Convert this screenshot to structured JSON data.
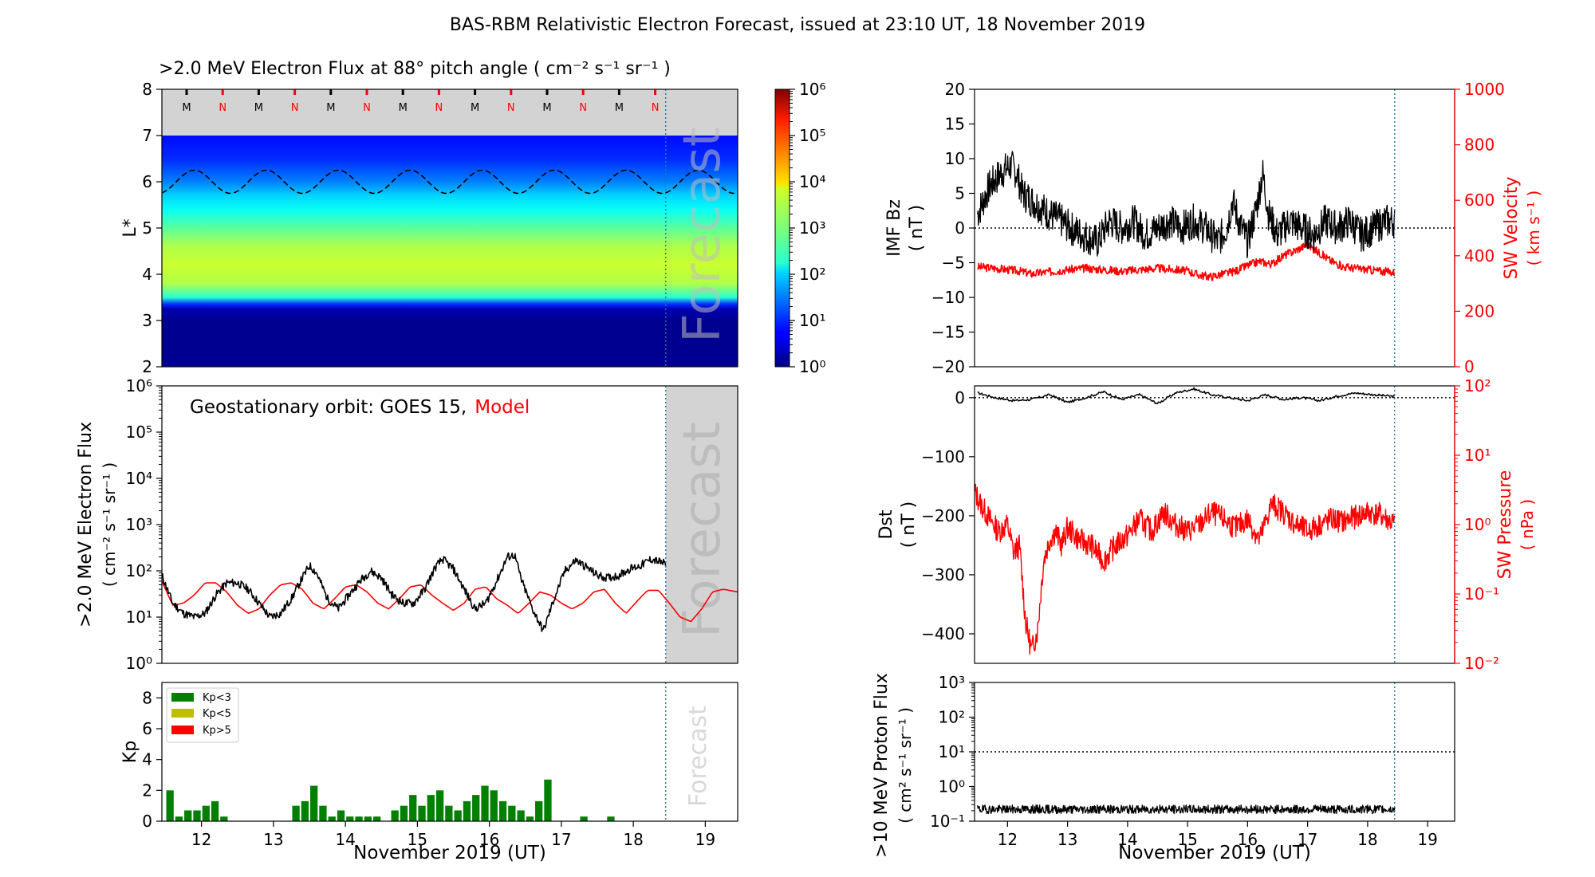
{
  "suptitle": "BAS-RBM Relativistic Electron Forecast, issued at 23:10 UT, 18 November 2019",
  "forecast_text": "Forecast",
  "colors": {
    "obs": "#000000",
    "model": "#ff0000",
    "red_axis": "#ff0000",
    "forecast_bg": "#d3d3d3",
    "kp_low": "#008000",
    "kp_mid": "#bfbf00",
    "kp_high": "#ff0000",
    "vline": "#1f77b4"
  },
  "chart_data": [
    {
      "id": "lstar_flux",
      "type": "heatmap",
      "title": ">2.0 MeV Electron Flux at 88° pitch angle ( cm⁻² s⁻¹ sr⁻¹ )",
      "ylabel": "L*",
      "xlim": [
        11.45,
        19.45
      ],
      "ylim": [
        2,
        8
      ],
      "yticks": [
        "2",
        "3",
        "4",
        "5",
        "6",
        "7",
        "8"
      ],
      "colorbar": {
        "scale": "log",
        "range": [
          1,
          1000000
        ],
        "ticks": [
          "10⁰",
          "10¹",
          "10²",
          "10³",
          "10⁴",
          "10⁵",
          "10⁶"
        ]
      },
      "profile_log10_by_L": [
        [
          2.0,
          0.1
        ],
        [
          3.0,
          0.1
        ],
        [
          3.25,
          0.3
        ],
        [
          3.35,
          1.0
        ],
        [
          3.5,
          2.5
        ],
        [
          3.8,
          3.3
        ],
        [
          4.2,
          3.45
        ],
        [
          4.6,
          3.3
        ],
        [
          5.0,
          2.8
        ],
        [
          5.4,
          2.3
        ],
        [
          5.7,
          2.0
        ],
        [
          6.0,
          1.5
        ],
        [
          6.5,
          1.0
        ],
        [
          7.0,
          0.8
        ]
      ],
      "grey_above_L": 7.0,
      "markers": [
        "M",
        "N",
        "M",
        "N",
        "M",
        "N",
        "M",
        "N",
        "M",
        "N",
        "M",
        "N",
        "M",
        "N"
      ],
      "last_closed_drift_shell": {
        "mean": 6.0,
        "amplitude": 0.25,
        "period_days": 1.0
      },
      "forecast_start": 18.45
    },
    {
      "id": "geo_flux",
      "type": "line",
      "annotation": "Geostationary orbit:   GOES 15,",
      "annotation_model": "Model",
      "ylabel": ">2.0 MeV Electron Flux",
      "ylabel2": "( cm⁻² s⁻¹ sr⁻¹ )",
      "yscale": "log",
      "xlim": [
        11.45,
        19.45
      ],
      "ylim": [
        1,
        1000000
      ],
      "yticks": [
        "10⁰",
        "10¹",
        "10²",
        "10³",
        "10⁴",
        "10⁵",
        "10⁶"
      ],
      "series": [
        {
          "name": "GOES 15",
          "x": [
            11.45,
            11.6,
            11.75,
            11.9,
            12.05,
            12.2,
            12.35,
            12.5,
            12.65,
            12.8,
            12.95,
            13.1,
            13.25,
            13.4,
            13.5,
            13.6,
            13.75,
            13.9,
            14.05,
            14.2,
            14.35,
            14.5,
            14.65,
            14.8,
            14.95,
            15.1,
            15.25,
            15.35,
            15.5,
            15.65,
            15.8,
            15.95,
            16.1,
            16.25,
            16.35,
            16.45,
            16.6,
            16.75,
            16.9,
            17.05,
            17.2,
            17.35,
            17.5,
            17.65,
            17.8,
            17.95,
            18.1,
            18.25,
            18.45
          ],
          "y": [
            80,
            20,
            12,
            10,
            12,
            30,
            55,
            55,
            40,
            20,
            10,
            12,
            25,
            70,
            130,
            90,
            25,
            15,
            30,
            60,
            100,
            70,
            30,
            20,
            20,
            40,
            120,
            180,
            110,
            40,
            15,
            20,
            60,
            200,
            220,
            60,
            15,
            5,
            25,
            100,
            170,
            120,
            80,
            70,
            80,
            110,
            130,
            180,
            140
          ]
        },
        {
          "name": "Model",
          "x": [
            11.45,
            11.6,
            11.75,
            11.9,
            12.05,
            12.2,
            12.35,
            12.5,
            12.65,
            12.8,
            12.95,
            13.1,
            13.25,
            13.4,
            13.55,
            13.7,
            13.85,
            14.0,
            14.15,
            14.3,
            14.45,
            14.6,
            14.75,
            14.9,
            15.05,
            15.2,
            15.35,
            15.5,
            15.65,
            15.8,
            15.95,
            16.1,
            16.25,
            16.4,
            16.55,
            16.7,
            16.85,
            17.0,
            17.15,
            17.3,
            17.45,
            17.6,
            17.75,
            17.9,
            18.05,
            18.2,
            18.35,
            18.5,
            18.65,
            18.8,
            18.95,
            19.1,
            19.25,
            19.45
          ],
          "y": [
            60,
            18,
            20,
            30,
            55,
            55,
            35,
            18,
            12,
            15,
            30,
            50,
            55,
            40,
            20,
            15,
            25,
            45,
            50,
            35,
            20,
            15,
            25,
            45,
            50,
            30,
            20,
            14,
            20,
            40,
            45,
            25,
            18,
            12,
            20,
            35,
            30,
            20,
            15,
            20,
            35,
            40,
            20,
            12,
            22,
            38,
            38,
            20,
            10,
            8,
            15,
            35,
            40,
            35
          ]
        }
      ],
      "forecast_start": 18.45
    },
    {
      "id": "kp",
      "type": "bar",
      "ylabel": "Kp",
      "xlim": [
        11.45,
        19.45
      ],
      "ylim": [
        0,
        9
      ],
      "yticks": [
        "0",
        "2",
        "4",
        "6",
        "8"
      ],
      "legend": [
        "Kp<3",
        "Kp<5",
        "Kp>5"
      ],
      "bin_days": 0.125,
      "bar_starts": [
        11.5,
        11.625,
        11.75,
        11.875,
        12.0,
        12.125,
        12.25,
        12.375,
        12.5,
        12.625,
        12.75,
        12.875,
        13.0,
        13.125,
        13.25,
        13.375,
        13.5,
        13.625,
        13.75,
        13.875,
        14.0,
        14.125,
        14.25,
        14.375,
        14.5,
        14.625,
        14.75,
        14.875,
        15.0,
        15.125,
        15.25,
        15.375,
        15.5,
        15.625,
        15.75,
        15.875,
        16.0,
        16.125,
        16.25,
        16.375,
        16.5,
        16.625,
        16.75,
        16.875,
        17.0,
        17.125,
        17.25,
        17.375,
        17.5,
        17.625,
        17.75,
        17.875,
        18.0,
        18.125,
        18.25,
        18.375
      ],
      "values": [
        2.0,
        0.3,
        0.7,
        0.7,
        1.0,
        1.3,
        0.3,
        0,
        0,
        0,
        0,
        0,
        0,
        0,
        1.0,
        1.3,
        2.3,
        1.0,
        0.3,
        0.7,
        0.3,
        0.3,
        0.3,
        0.3,
        0,
        0.7,
        1.0,
        1.7,
        1.0,
        1.7,
        2.0,
        1.0,
        0.7,
        1.3,
        1.7,
        2.3,
        2.0,
        1.3,
        1.0,
        0.7,
        0.3,
        1.3,
        2.7,
        0,
        0,
        0,
        0.3,
        0,
        0,
        0.3,
        0,
        0,
        0,
        0,
        0,
        0
      ],
      "forecast_start": 18.45
    },
    {
      "id": "imf",
      "type": "line",
      "ylabel": "IMF Bz",
      "ylabel2": "( nT )",
      "xlim": [
        11.45,
        19.45
      ],
      "ylim": [
        -20,
        20
      ],
      "yticks": [
        "−20",
        "−15",
        "−10",
        "−5",
        "0",
        "5",
        "10",
        "15",
        "20"
      ],
      "ylabel_right": "SW Velocity",
      "ylabel_right2": "( km s⁻¹ )",
      "ylim_right": [
        0,
        1000
      ],
      "yticks_right": [
        "0",
        "200",
        "400",
        "600",
        "800",
        "1000"
      ],
      "series": [
        {
          "name": "IMF Bz",
          "x": [
            11.5,
            11.7,
            11.9,
            12.05,
            12.15,
            12.25,
            12.4,
            12.55,
            12.7,
            12.9,
            13.05,
            13.25,
            13.5,
            13.7,
            13.9,
            14.1,
            14.3,
            14.5,
            14.7,
            14.9,
            15.1,
            15.3,
            15.5,
            15.65,
            15.75,
            15.85,
            16.0,
            16.15,
            16.25,
            16.35,
            16.5,
            16.7,
            16.9,
            17.1,
            17.3,
            17.5,
            17.7,
            17.9,
            18.1,
            18.3,
            18.45
          ],
          "y": [
            2,
            6,
            8,
            9,
            8,
            5,
            4,
            3,
            2,
            1,
            0,
            -1,
            -2,
            1,
            0,
            1,
            -1,
            0,
            1,
            0,
            1,
            0,
            -2,
            0,
            4,
            1,
            -2,
            3,
            8,
            2,
            -1,
            1,
            0,
            -1,
            1,
            0,
            1,
            -1,
            0,
            1,
            1
          ]
        },
        {
          "name": "SW Velocity",
          "x": [
            11.5,
            11.8,
            12.0,
            12.2,
            12.4,
            12.6,
            12.8,
            13.0,
            13.3,
            13.6,
            13.9,
            14.2,
            14.5,
            14.8,
            15.0,
            15.2,
            15.4,
            15.6,
            15.8,
            16.0,
            16.2,
            16.4,
            16.6,
            16.8,
            17.0,
            17.2,
            17.4,
            17.6,
            17.8,
            18.0,
            18.2,
            18.45
          ],
          "y": [
            360,
            355,
            350,
            345,
            335,
            340,
            345,
            350,
            355,
            350,
            345,
            350,
            355,
            350,
            345,
            330,
            325,
            335,
            345,
            365,
            380,
            370,
            400,
            420,
            440,
            410,
            380,
            360,
            355,
            350,
            345,
            340
          ]
        }
      ],
      "forecast_start": 18.45
    },
    {
      "id": "dst",
      "type": "line",
      "ylabel": "Dst",
      "ylabel2": "( nT )",
      "xlim": [
        11.45,
        19.45
      ],
      "ylim": [
        -450,
        20
      ],
      "yticks": [
        "−400",
        "−300",
        "−200",
        "−100",
        "0"
      ],
      "ylabel_right": "SW Pressure",
      "ylabel_right2": "( nPa )",
      "yscale_right": "log",
      "ylim_right": [
        0.01,
        100
      ],
      "yticks_right": [
        "10⁻²",
        "10⁻¹",
        "10⁰",
        "10¹",
        "10²"
      ],
      "series": [
        {
          "name": "Dst",
          "x": [
            11.5,
            11.8,
            12.1,
            12.4,
            12.7,
            13.0,
            13.3,
            13.6,
            13.9,
            14.2,
            14.5,
            14.8,
            15.1,
            15.4,
            15.7,
            16.0,
            16.3,
            16.6,
            16.9,
            17.2,
            17.5,
            17.8,
            18.1,
            18.45
          ],
          "y": [
            8,
            0,
            -5,
            -3,
            5,
            -8,
            0,
            10,
            -3,
            5,
            -10,
            8,
            15,
            5,
            0,
            -5,
            5,
            -3,
            0,
            -5,
            3,
            8,
            5,
            2
          ]
        },
        {
          "name": "SW Pressure",
          "x": [
            11.45,
            11.55,
            11.7,
            11.85,
            12.0,
            12.1,
            12.2,
            12.3,
            12.4,
            12.5,
            12.6,
            12.7,
            12.8,
            12.9,
            13.0,
            13.2,
            13.4,
            13.6,
            13.8,
            14.0,
            14.2,
            14.4,
            14.6,
            14.8,
            15.0,
            15.2,
            15.4,
            15.6,
            15.8,
            16.0,
            16.2,
            16.4,
            16.6,
            16.8,
            17.0,
            17.2,
            17.4,
            17.6,
            17.8,
            18.0,
            18.2,
            18.45
          ],
          "y": [
            3,
            2,
            1.2,
            0.8,
            1,
            0.4,
            0.5,
            0.04,
            0.015,
            0.03,
            0.3,
            0.6,
            0.8,
            0.5,
            0.9,
            0.6,
            0.5,
            0.3,
            0.5,
            0.7,
            1.2,
            0.8,
            1.5,
            1.0,
            0.8,
            1.0,
            1.5,
            1.2,
            0.9,
            1.2,
            0.6,
            2.0,
            1.5,
            1.0,
            0.8,
            1.0,
            1.2,
            1.1,
            1.3,
            1.5,
            1.4,
            1.0
          ]
        }
      ],
      "forecast_start": 18.45
    },
    {
      "id": "proton",
      "type": "line",
      "ylabel": ">10 MeV Proton Flux",
      "ylabel2": "( cm² s⁻¹ sr⁻¹ )",
      "yscale": "log",
      "xlim": [
        11.45,
        19.45
      ],
      "ylim": [
        0.1,
        1000
      ],
      "yticks": [
        "10⁻¹",
        "10⁰",
        "10¹",
        "10²",
        "10³"
      ],
      "threshold": 10,
      "series": [
        {
          "name": ">10 MeV Proton Flux",
          "x": [
            11.5,
            18.45
          ],
          "y": [
            0.22,
            0.22
          ]
        }
      ],
      "forecast_start": 18.45
    }
  ],
  "xticks": [
    "12",
    "13",
    "14",
    "15",
    "16",
    "17",
    "18",
    "19"
  ],
  "xlabel": "November 2019 (UT)"
}
